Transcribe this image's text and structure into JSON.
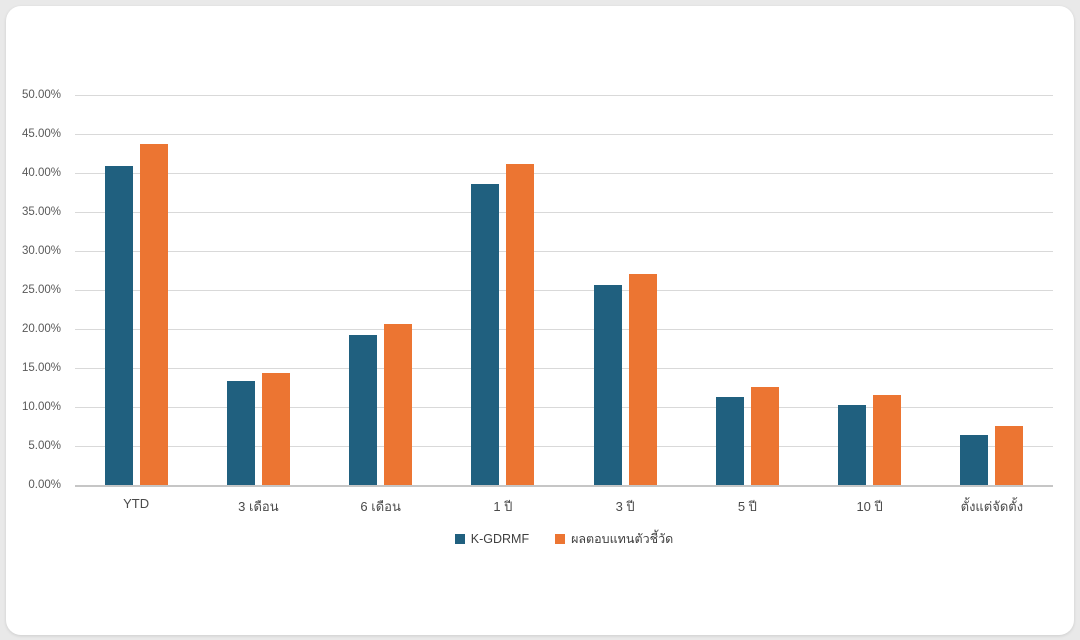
{
  "page": {
    "background_color": "#e9e9e9",
    "card_background_color": "#ffffff"
  },
  "chart_data": {
    "type": "bar",
    "title": "",
    "xlabel": "",
    "ylabel": "",
    "categories": [
      "YTD",
      "3 เดือน",
      "6 เดือน",
      "1 ปี",
      "3 ปี",
      "5 ปี",
      "10 ปี",
      "ตั้งแต่จัดตั้ง"
    ],
    "series": [
      {
        "name": "K-GDRMF",
        "color": "#20607f",
        "values": [
          40.85,
          13.3,
          19.25,
          38.55,
          25.6,
          11.35,
          10.2,
          6.4
        ]
      },
      {
        "name": "ผลตอบแทนตัวชี้วัด",
        "color": "#ec7532",
        "values": [
          43.75,
          14.4,
          20.65,
          41.2,
          27.1,
          12.55,
          11.6,
          7.6
        ]
      }
    ],
    "ylim": [
      0,
      50
    ],
    "y_tick_step": 5,
    "y_tick_labels": [
      "50.00%",
      "45.00%",
      "40.00%",
      "35.00%",
      "30.00%",
      "25.00%",
      "20.00%",
      "15.00%",
      "10.00%",
      "5.00%",
      "0.00%"
    ],
    "grid": true,
    "gridline_color": "#d9d9d9",
    "axis_line_color": "#c6c6c6",
    "legend_position": "bottom"
  }
}
